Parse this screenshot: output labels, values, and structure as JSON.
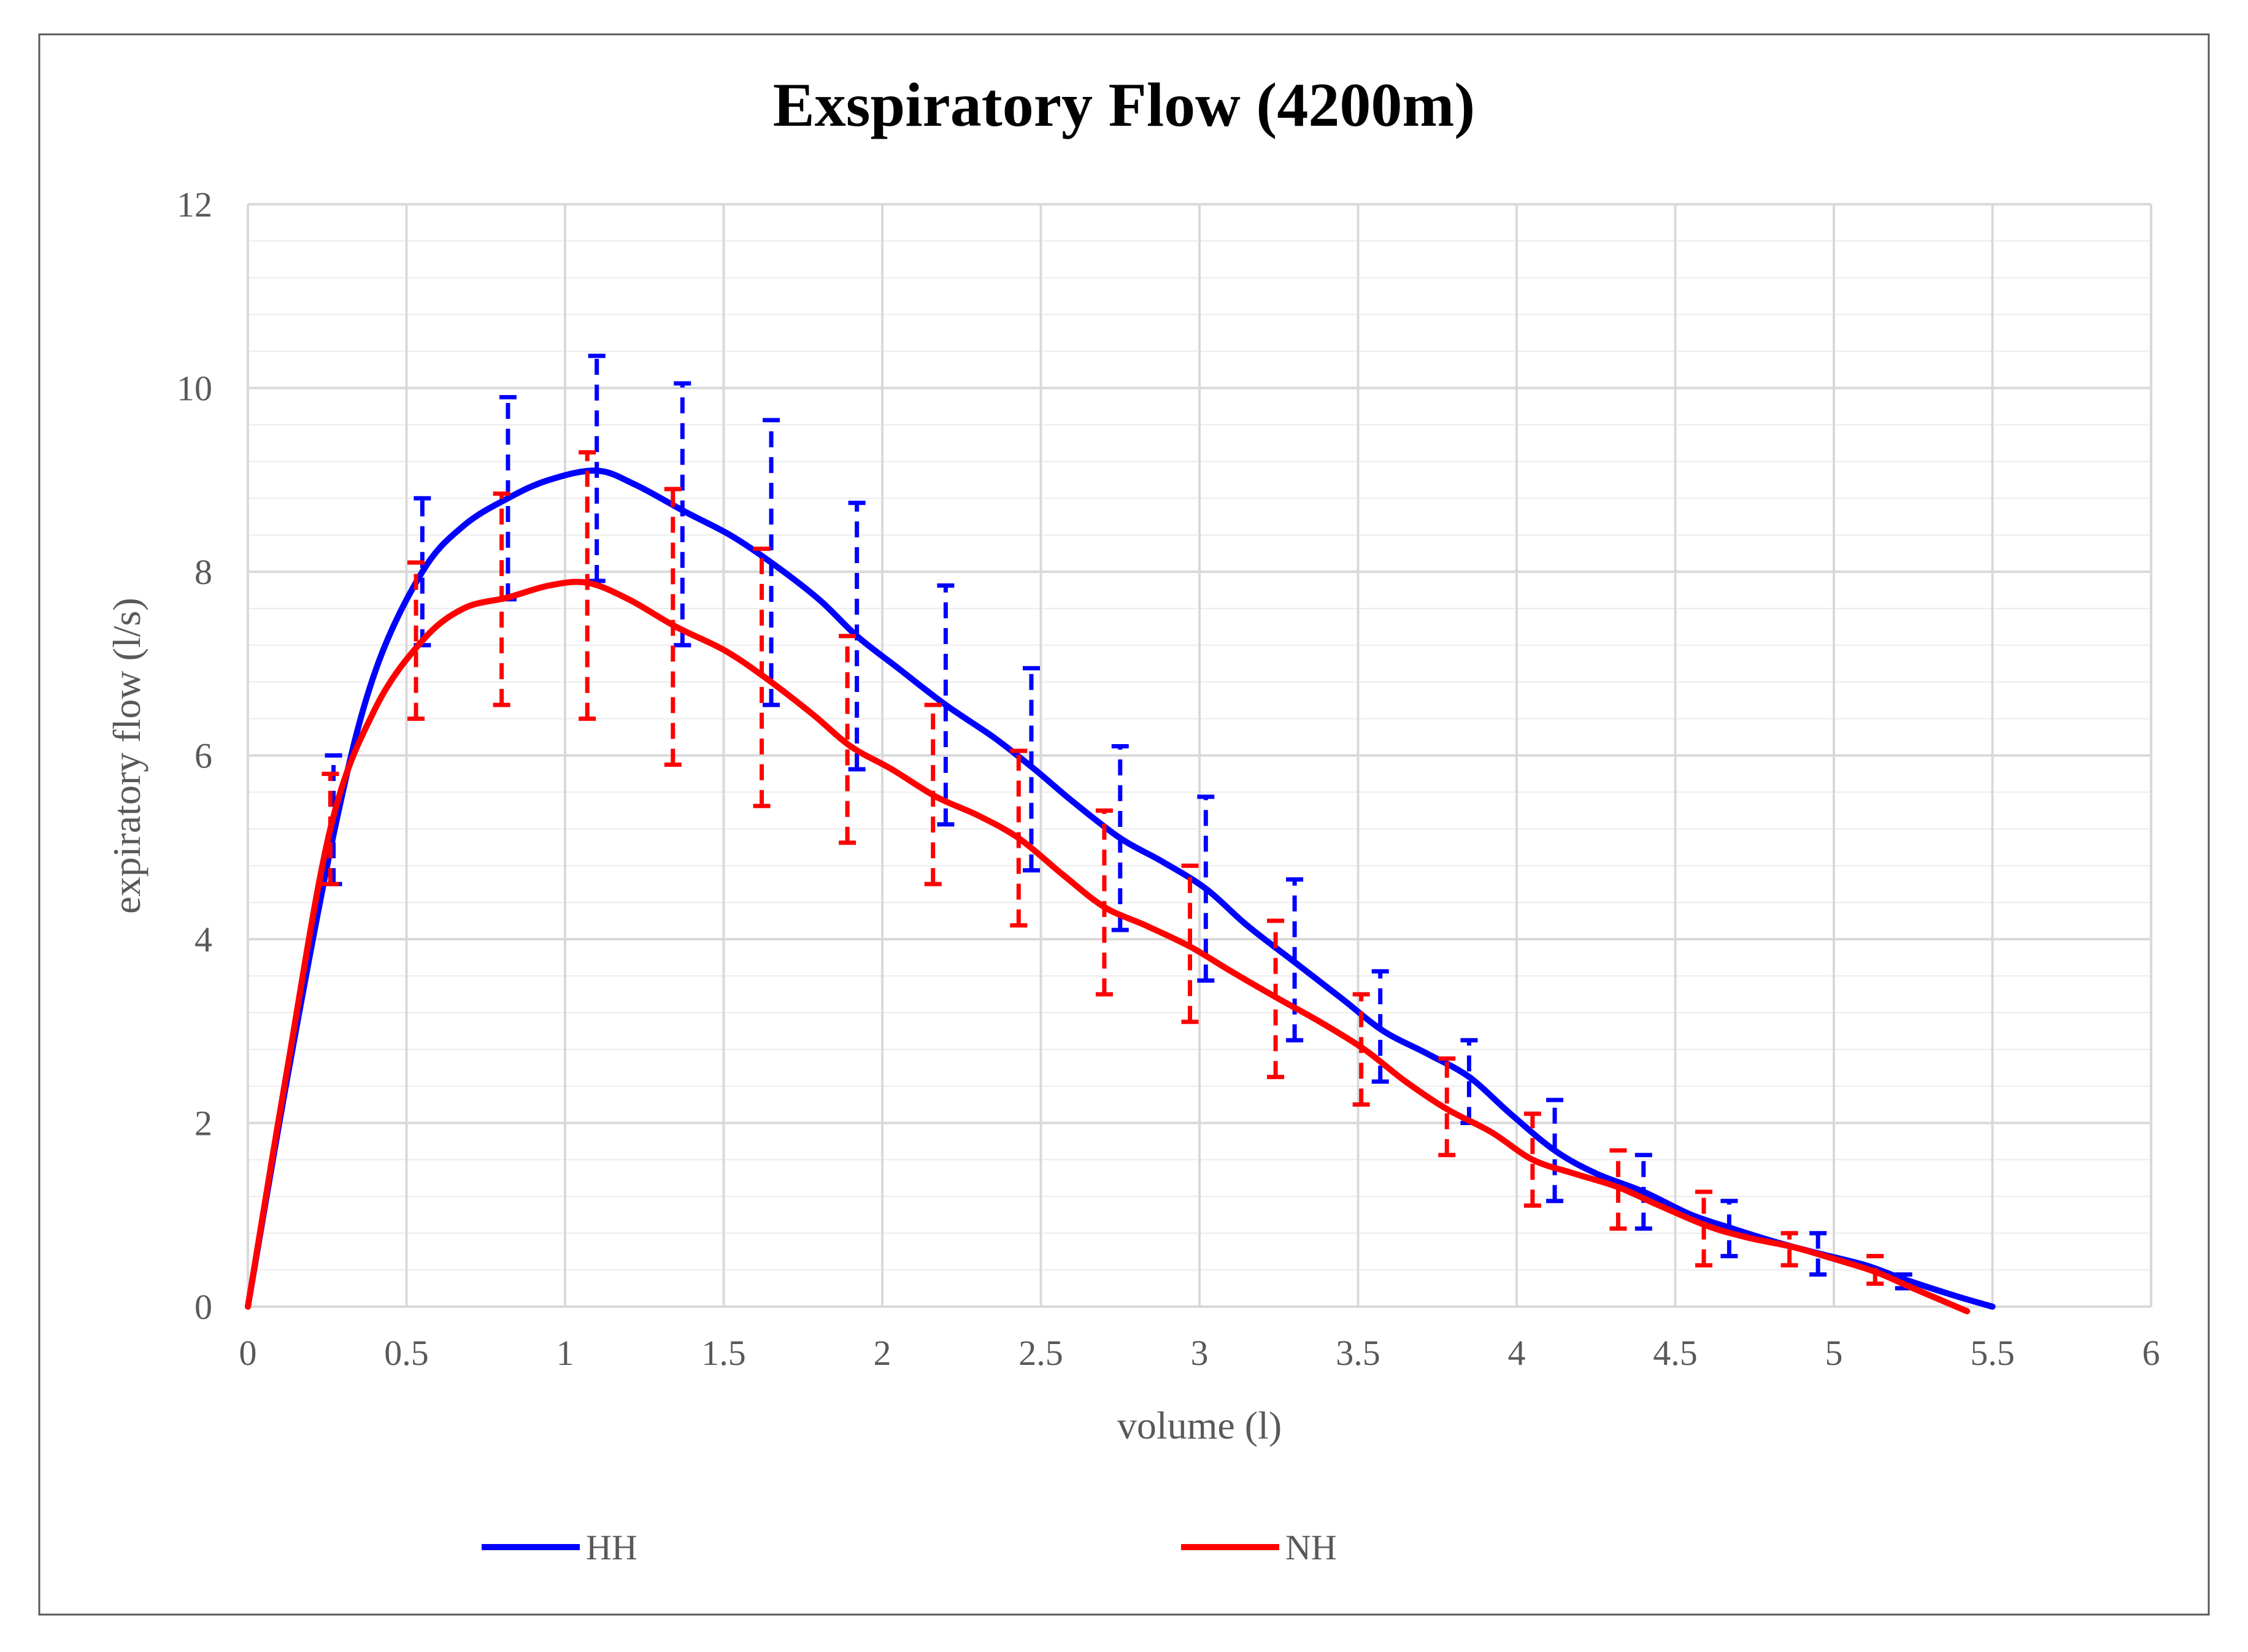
{
  "chart_data": {
    "type": "line",
    "title": "Exspiratory Flow (4200m)",
    "xlabel": "volume (l)",
    "ylabel": "expiratory flow (l/s)",
    "xlim": [
      0,
      6
    ],
    "ylim": [
      0,
      12
    ],
    "x_ticks": [
      "0",
      "0.5",
      "1",
      "1.5",
      "2",
      "2.5",
      "3",
      "3.5",
      "4",
      "4.5",
      "5",
      "5.5",
      "6"
    ],
    "y_ticks": [
      "0",
      "2",
      "4",
      "6",
      "8",
      "10",
      "12"
    ],
    "grid": true,
    "legend_position": "bottom",
    "series": [
      {
        "name": "HH",
        "color": "#0000ff",
        "curve": [
          [
            0,
            0
          ],
          [
            0.13,
            2.6
          ],
          [
            0.28,
            5.3
          ],
          [
            0.4,
            6.9
          ],
          [
            0.55,
            8.0
          ],
          [
            0.68,
            8.5
          ],
          [
            0.82,
            8.8
          ],
          [
            0.95,
            9.0
          ],
          [
            1.1,
            9.1
          ],
          [
            1.22,
            8.95
          ],
          [
            1.38,
            8.65
          ],
          [
            1.52,
            8.4
          ],
          [
            1.65,
            8.1
          ],
          [
            1.8,
            7.7
          ],
          [
            1.92,
            7.3
          ],
          [
            2.05,
            6.95
          ],
          [
            2.2,
            6.55
          ],
          [
            2.35,
            6.2
          ],
          [
            2.48,
            5.85
          ],
          [
            2.6,
            5.5
          ],
          [
            2.75,
            5.1
          ],
          [
            2.88,
            4.85
          ],
          [
            3.02,
            4.55
          ],
          [
            3.15,
            4.15
          ],
          [
            3.3,
            3.75
          ],
          [
            3.45,
            3.35
          ],
          [
            3.58,
            3.0
          ],
          [
            3.72,
            2.75
          ],
          [
            3.85,
            2.5
          ],
          [
            3.98,
            2.1
          ],
          [
            4.12,
            1.7
          ],
          [
            4.25,
            1.45
          ],
          [
            4.4,
            1.25
          ],
          [
            4.55,
            1.0
          ],
          [
            4.68,
            0.85
          ],
          [
            4.82,
            0.7
          ],
          [
            4.95,
            0.58
          ],
          [
            5.1,
            0.45
          ],
          [
            5.22,
            0.3
          ],
          [
            5.38,
            0.12
          ],
          [
            5.5,
            0.0
          ]
        ],
        "error_bars": [
          {
            "x": 0.27,
            "low": 4.6,
            "high": 6.0
          },
          {
            "x": 0.55,
            "low": 7.2,
            "high": 8.8
          },
          {
            "x": 0.82,
            "low": 7.7,
            "high": 9.9
          },
          {
            "x": 1.1,
            "low": 7.9,
            "high": 10.35
          },
          {
            "x": 1.37,
            "low": 7.2,
            "high": 10.05
          },
          {
            "x": 1.65,
            "low": 6.55,
            "high": 9.65
          },
          {
            "x": 1.92,
            "low": 5.85,
            "high": 8.75
          },
          {
            "x": 2.2,
            "low": 5.25,
            "high": 7.85
          },
          {
            "x": 2.47,
            "low": 4.75,
            "high": 6.95
          },
          {
            "x": 2.75,
            "low": 4.1,
            "high": 6.1
          },
          {
            "x": 3.02,
            "low": 3.55,
            "high": 5.55
          },
          {
            "x": 3.3,
            "low": 2.9,
            "high": 4.65
          },
          {
            "x": 3.57,
            "low": 2.45,
            "high": 3.65
          },
          {
            "x": 3.85,
            "low": 2.0,
            "high": 2.9
          },
          {
            "x": 4.12,
            "low": 1.15,
            "high": 2.25
          },
          {
            "x": 4.4,
            "low": 0.85,
            "high": 1.65
          },
          {
            "x": 4.67,
            "low": 0.55,
            "high": 1.15
          },
          {
            "x": 4.95,
            "low": 0.35,
            "high": 0.8
          },
          {
            "x": 5.22,
            "low": 0.2,
            "high": 0.35
          }
        ]
      },
      {
        "name": "NH",
        "color": "#ff0000",
        "curve": [
          [
            0,
            0
          ],
          [
            0.12,
            2.5
          ],
          [
            0.26,
            5.2
          ],
          [
            0.4,
            6.5
          ],
          [
            0.55,
            7.25
          ],
          [
            0.68,
            7.6
          ],
          [
            0.82,
            7.72
          ],
          [
            0.95,
            7.85
          ],
          [
            1.07,
            7.88
          ],
          [
            1.2,
            7.7
          ],
          [
            1.35,
            7.4
          ],
          [
            1.5,
            7.15
          ],
          [
            1.63,
            6.85
          ],
          [
            1.78,
            6.45
          ],
          [
            1.9,
            6.1
          ],
          [
            2.03,
            5.85
          ],
          [
            2.17,
            5.55
          ],
          [
            2.3,
            5.35
          ],
          [
            2.43,
            5.1
          ],
          [
            2.57,
            4.7
          ],
          [
            2.7,
            4.35
          ],
          [
            2.83,
            4.15
          ],
          [
            2.97,
            3.92
          ],
          [
            3.1,
            3.65
          ],
          [
            3.25,
            3.35
          ],
          [
            3.38,
            3.1
          ],
          [
            3.52,
            2.8
          ],
          [
            3.65,
            2.45
          ],
          [
            3.78,
            2.15
          ],
          [
            3.92,
            1.9
          ],
          [
            4.05,
            1.6
          ],
          [
            4.18,
            1.45
          ],
          [
            4.32,
            1.3
          ],
          [
            4.45,
            1.1
          ],
          [
            4.6,
            0.88
          ],
          [
            4.73,
            0.75
          ],
          [
            4.87,
            0.65
          ],
          [
            5.0,
            0.52
          ],
          [
            5.13,
            0.38
          ],
          [
            5.25,
            0.2
          ],
          [
            5.42,
            -0.05
          ]
        ],
        "error_bars": [
          {
            "x": 0.26,
            "low": 4.6,
            "high": 5.8
          },
          {
            "x": 0.53,
            "low": 6.4,
            "high": 8.1
          },
          {
            "x": 0.8,
            "low": 6.55,
            "high": 8.85
          },
          {
            "x": 1.07,
            "low": 6.4,
            "high": 9.3
          },
          {
            "x": 1.34,
            "low": 5.9,
            "high": 8.9
          },
          {
            "x": 1.62,
            "low": 5.45,
            "high": 8.25
          },
          {
            "x": 1.89,
            "low": 5.05,
            "high": 7.3
          },
          {
            "x": 2.16,
            "low": 4.6,
            "high": 6.55
          },
          {
            "x": 2.43,
            "low": 4.15,
            "high": 6.05
          },
          {
            "x": 2.7,
            "low": 3.4,
            "high": 5.4
          },
          {
            "x": 2.97,
            "low": 3.1,
            "high": 4.8
          },
          {
            "x": 3.24,
            "low": 2.5,
            "high": 4.2
          },
          {
            "x": 3.51,
            "low": 2.2,
            "high": 3.4
          },
          {
            "x": 3.78,
            "low": 1.65,
            "high": 2.7
          },
          {
            "x": 4.05,
            "low": 1.1,
            "high": 2.1
          },
          {
            "x": 4.32,
            "low": 0.85,
            "high": 1.7
          },
          {
            "x": 4.59,
            "low": 0.45,
            "high": 1.25
          },
          {
            "x": 4.86,
            "low": 0.45,
            "high": 0.8
          },
          {
            "x": 5.13,
            "low": 0.25,
            "high": 0.55
          }
        ]
      }
    ]
  }
}
